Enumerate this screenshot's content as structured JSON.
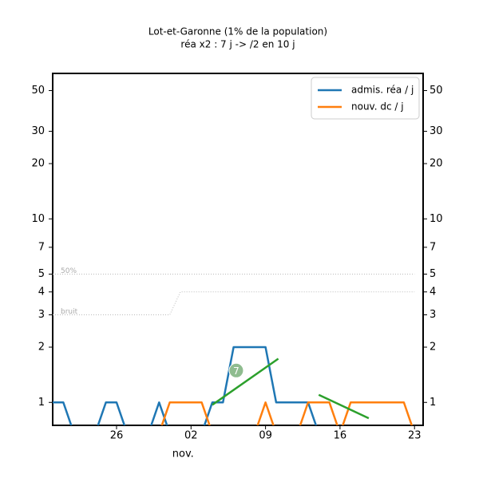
{
  "chart_data": {
    "type": "line",
    "title": "Lot-et-Garonne (1% de la population)",
    "subtitle": "réa x2 : 7 j -> /2 en 10 j",
    "categories": [
      null,
      null,
      null,
      null,
      null,
      null,
      "26",
      null,
      null,
      null,
      null,
      null,
      null,
      "02",
      null,
      null,
      null,
      null,
      null,
      null,
      "09",
      null,
      null,
      null,
      null,
      null,
      null,
      "16",
      null,
      null,
      null,
      null,
      null,
      null,
      "23"
    ],
    "x_sublabel": "nov.",
    "log_y": true,
    "ylim": [
      0.75,
      62
    ],
    "yticks": [
      1,
      2,
      3,
      4,
      5,
      7,
      10,
      20,
      30,
      50
    ],
    "series": [
      {
        "name": "admis. réa / j",
        "color": "#1f77b4",
        "values": [
          1,
          1,
          0,
          0,
          0,
          1,
          1,
          0,
          0,
          0,
          1,
          0,
          0,
          0,
          0,
          1,
          1,
          2,
          2,
          2,
          2,
          1,
          1,
          1,
          1,
          0,
          0,
          0,
          0,
          0,
          0,
          0,
          0,
          0,
          0
        ]
      },
      {
        "name": "nouv. dc / j",
        "color": "#ff7f0e",
        "values": [
          0,
          0,
          0,
          0,
          0,
          0,
          0,
          0,
          0,
          0,
          0,
          1,
          1,
          1,
          1,
          0,
          0,
          0,
          0,
          0,
          1,
          0,
          0,
          0,
          1,
          1,
          1,
          0,
          1,
          1,
          1,
          1,
          1,
          1,
          0
        ]
      }
    ],
    "reference_lines": [
      {
        "label": "50%",
        "values": [
          5,
          5,
          5,
          5,
          5,
          5,
          5,
          5,
          5,
          5,
          5,
          5,
          5,
          5,
          5,
          5,
          5,
          5,
          5,
          5,
          5,
          5,
          5,
          5,
          5,
          5,
          5,
          5,
          5,
          5,
          5,
          5,
          5,
          5,
          5
        ]
      },
      {
        "label": "bruit",
        "values": [
          3,
          3,
          3,
          3,
          3,
          3,
          3,
          3,
          3,
          3,
          3,
          3,
          4,
          4,
          4,
          4,
          4,
          4,
          4,
          4,
          4,
          4,
          4,
          4,
          4,
          4,
          4,
          4,
          4,
          4,
          4,
          4,
          4,
          4,
          4
        ]
      }
    ],
    "trends": [
      {
        "color": "#2ca02c",
        "x": [
          15,
          21.2
        ],
        "values": [
          0.97,
          1.73
        ]
      },
      {
        "color": "#2ca02c",
        "x": [
          25,
          29.7
        ],
        "values": [
          1.1,
          0.82
        ]
      }
    ],
    "trend_label": "7",
    "legend": "upper right"
  }
}
